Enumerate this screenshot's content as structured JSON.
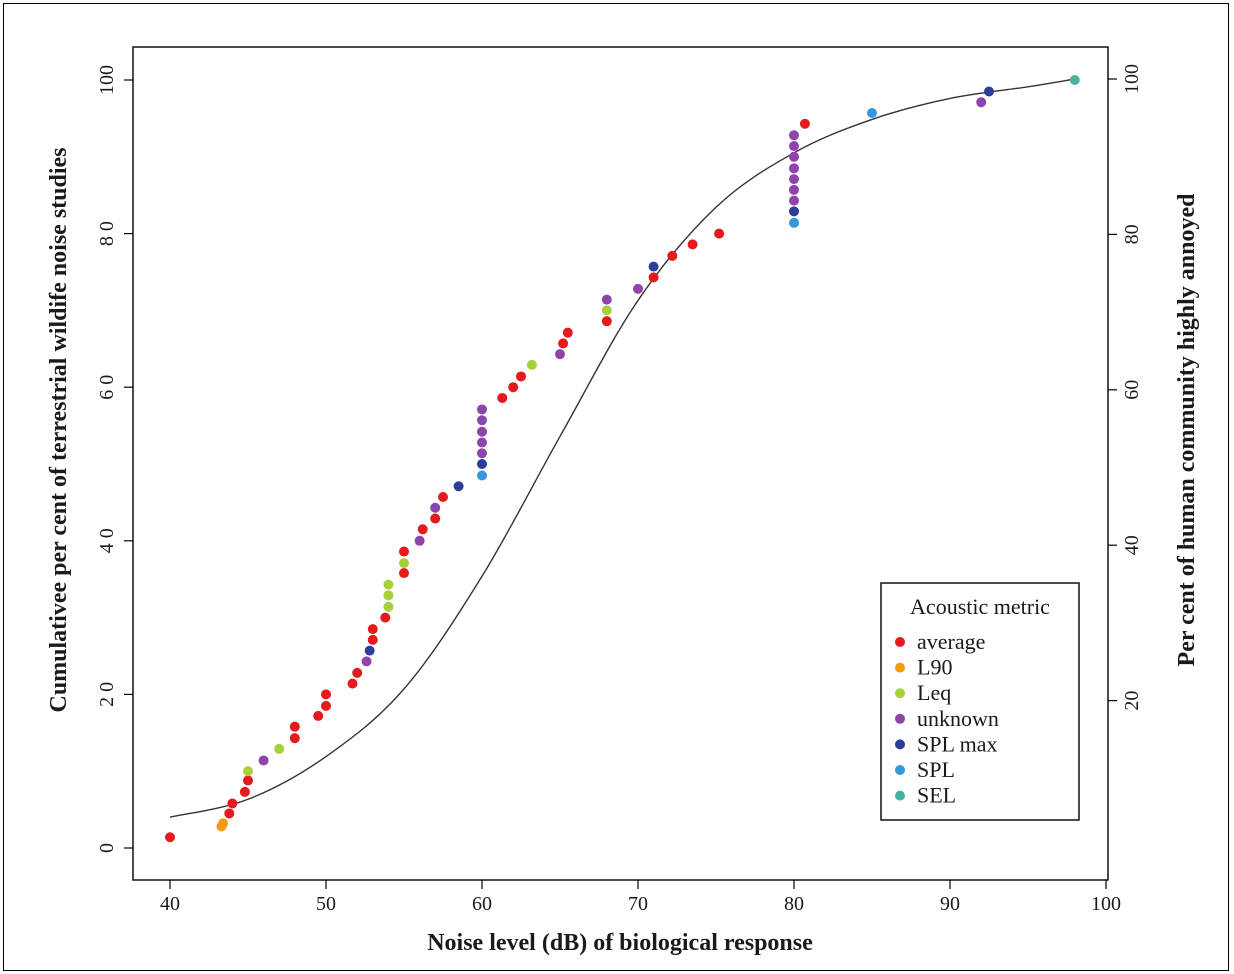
{
  "chart_data": {
    "type": "scatter",
    "title": "",
    "xlabel": "Noise level (dB) of biological response",
    "ylabel": "Cumulativee per cent of terrestrial wildife noise studies",
    "ylabel_right": "Per cent of human community highly annoyed",
    "xlim": [
      40,
      100
    ],
    "ylim": [
      0,
      100
    ],
    "x_ticks": [
      "40",
      "50",
      "60",
      "70",
      "80",
      "90",
      "100"
    ],
    "y_ticks": [
      "0",
      "2 0",
      "4 0",
      "6 0",
      "8 0",
      "100"
    ],
    "y_ticks_right": [
      "20",
      "40",
      "60",
      "80",
      "100"
    ],
    "grid": false,
    "legend": {
      "title": "Acoustic metric",
      "position": "bottom-right",
      "entries": [
        {
          "name": "average",
          "color": "#e41a1c"
        },
        {
          "name": "L90",
          "color": "#f39c12"
        },
        {
          "name": "Leq",
          "color": "#a6d13a"
        },
        {
          "name": "unknown",
          "color": "#8e44ad"
        },
        {
          "name": "SPL max",
          "color": "#2c3e9a"
        },
        {
          "name": "SPL",
          "color": "#3498db"
        },
        {
          "name": "SEL",
          "color": "#45b39d"
        }
      ]
    },
    "series": [
      {
        "name": "average",
        "points": [
          [
            40,
            1.4
          ],
          [
            43.8,
            4.5
          ],
          [
            44,
            5.8
          ],
          [
            44.8,
            7.3
          ],
          [
            45,
            8.8
          ],
          [
            48,
            14.3
          ],
          [
            48,
            15.8
          ],
          [
            49.5,
            17.2
          ],
          [
            50,
            18.5
          ],
          [
            50,
            20
          ],
          [
            51.7,
            21.4
          ],
          [
            52,
            22.8
          ],
          [
            53,
            27.1
          ],
          [
            53,
            28.5
          ],
          [
            53.8,
            30
          ],
          [
            55,
            35.8
          ],
          [
            55,
            38.6
          ],
          [
            56.2,
            41.5
          ],
          [
            57,
            42.9
          ],
          [
            57.5,
            45.7
          ],
          [
            61.3,
            58.6
          ],
          [
            62,
            60
          ],
          [
            62.5,
            61.4
          ],
          [
            65.2,
            65.7
          ],
          [
            65.5,
            67.1
          ],
          [
            68,
            68.6
          ],
          [
            71,
            74.3
          ],
          [
            72.2,
            77.1
          ],
          [
            73.5,
            78.6
          ],
          [
            75.2,
            80
          ],
          [
            80.7,
            94.3
          ]
        ]
      },
      {
        "name": "L90",
        "points": [
          [
            43.3,
            2.8
          ],
          [
            43.4,
            3.2
          ]
        ]
      },
      {
        "name": "Leq",
        "points": [
          [
            45,
            10
          ],
          [
            47,
            12.9
          ],
          [
            54,
            31.4
          ],
          [
            54,
            32.9
          ],
          [
            54,
            34.3
          ],
          [
            55,
            37.1
          ],
          [
            63.2,
            62.9
          ],
          [
            68,
            70
          ]
        ]
      },
      {
        "name": "unknown",
        "points": [
          [
            46,
            11.4
          ],
          [
            52.6,
            24.3
          ],
          [
            56,
            40
          ],
          [
            57,
            44.3
          ],
          [
            60,
            51.4
          ],
          [
            60,
            52.8
          ],
          [
            60,
            54.2
          ],
          [
            60,
            55.7
          ],
          [
            60,
            57.1
          ],
          [
            65,
            64.3
          ],
          [
            68,
            71.4
          ],
          [
            70,
            72.8
          ],
          [
            80,
            84.3
          ],
          [
            80,
            85.7
          ],
          [
            80,
            87.1
          ],
          [
            80,
            88.5
          ],
          [
            80,
            90
          ],
          [
            80,
            91.4
          ],
          [
            80,
            92.8
          ],
          [
            92,
            97.1
          ]
        ]
      },
      {
        "name": "SPL max",
        "points": [
          [
            52.8,
            25.7
          ],
          [
            58.5,
            47.1
          ],
          [
            60,
            50
          ],
          [
            71,
            75.7
          ],
          [
            80,
            82.9
          ],
          [
            92.5,
            98.5
          ]
        ]
      },
      {
        "name": "SPL",
        "points": [
          [
            60,
            48.5
          ],
          [
            80,
            81.4
          ],
          [
            85,
            95.7
          ]
        ]
      },
      {
        "name": "SEL",
        "points": [
          [
            98,
            100
          ]
        ]
      }
    ],
    "curve": {
      "label": "",
      "x": [
        40,
        45,
        50,
        55,
        60,
        65,
        70,
        75,
        80,
        85,
        90,
        95,
        98
      ],
      "y_right": [
        5,
        7.3,
        12.8,
        21.5,
        36,
        54,
        71.5,
        83.5,
        90.5,
        94.8,
        97.5,
        99,
        100
      ]
    }
  }
}
